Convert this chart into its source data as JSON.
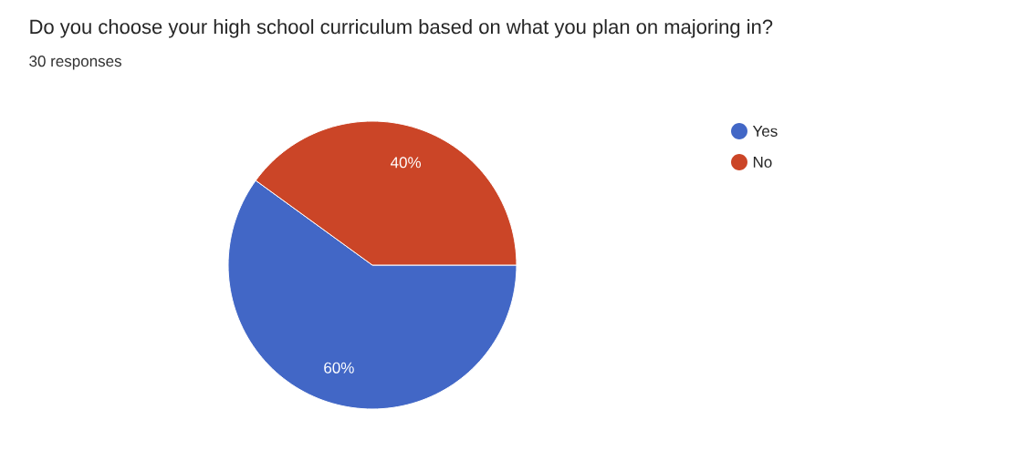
{
  "chart_data": {
    "type": "pie",
    "title": "Do you choose your high school curriculum based on what you plan on majoring in?",
    "subtitle": "30 responses",
    "categories": [
      "Yes",
      "No"
    ],
    "values": [
      60,
      40
    ],
    "value_labels": [
      "60%",
      "40%"
    ],
    "colors": [
      "#4267c6",
      "#cb4527"
    ],
    "legend": "right"
  }
}
